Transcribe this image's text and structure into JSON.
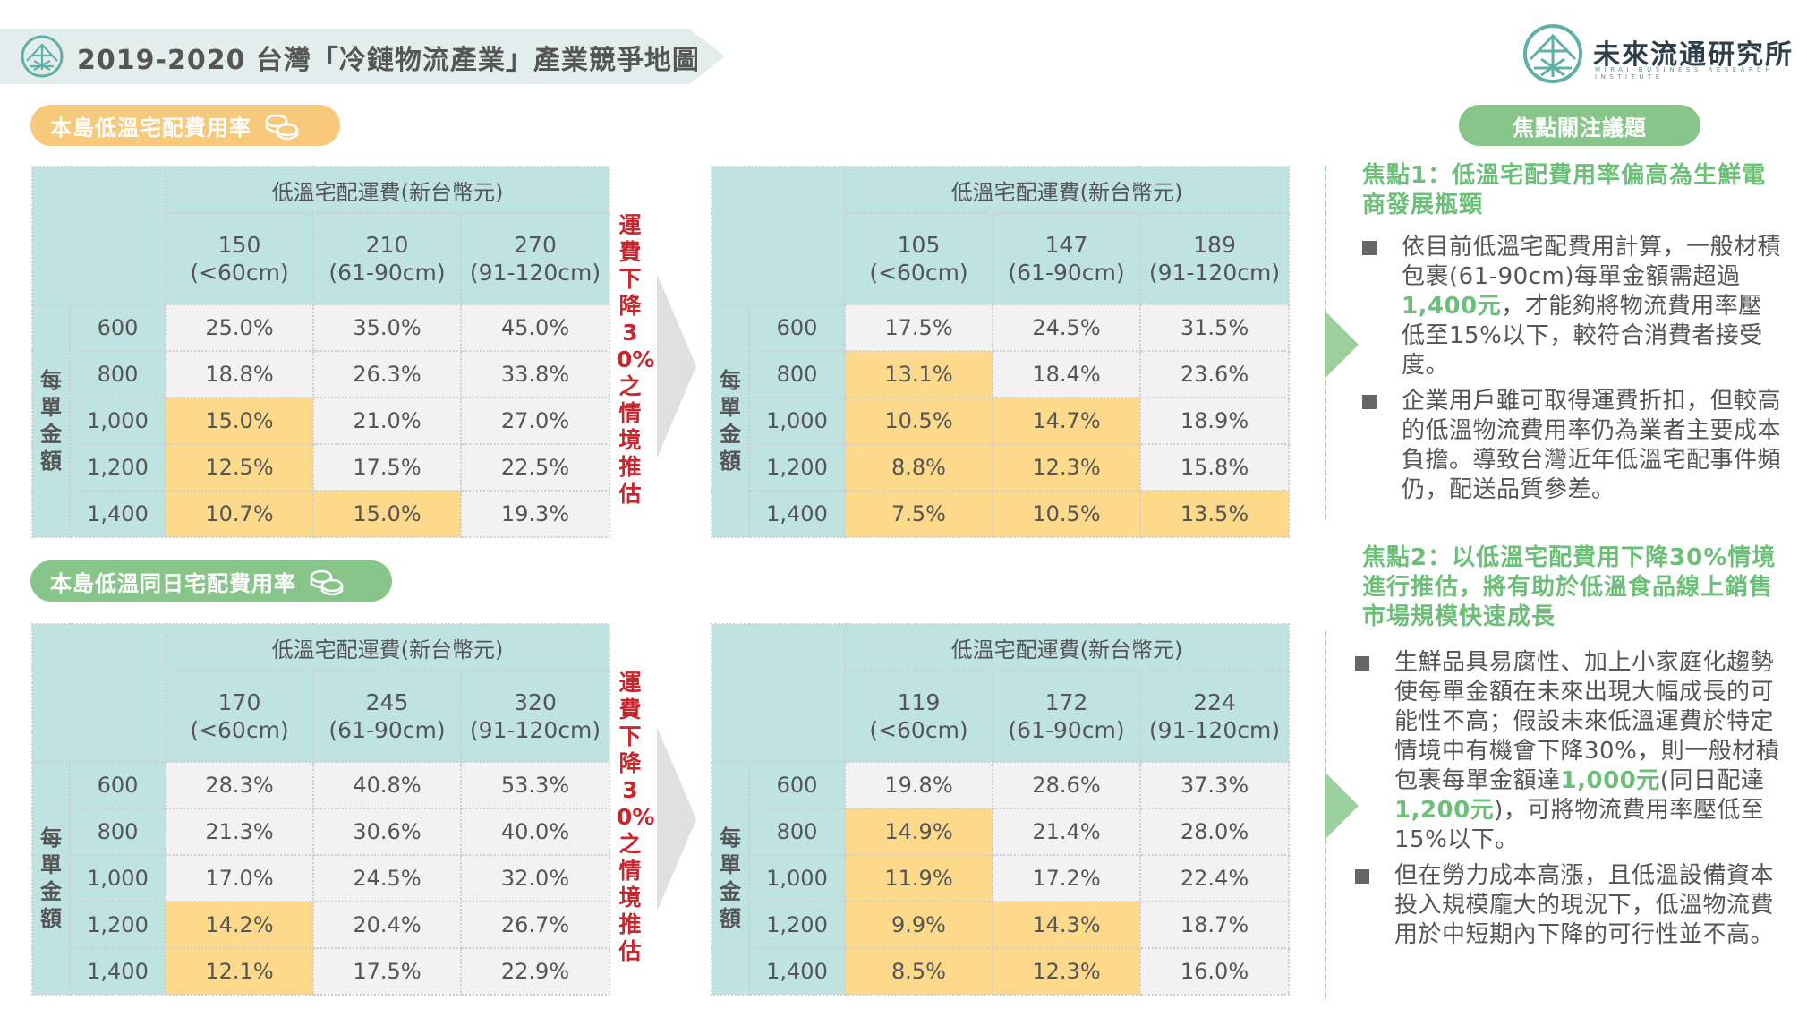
{
  "title": "2019-2020 台灣「冷鏈物流產業」產業競爭地圖",
  "logo": {
    "name": "未來流通研究所",
    "subtitle": "MIRAI BUSINESS RESEARCH INSTITUTE",
    "icon": "mirai-logo-icon"
  },
  "sections": {
    "island_label": "本島低溫宅配費用率",
    "same_day_label": "本島低溫同日宅配費用率",
    "focus_label": "焦點關注議題"
  },
  "colors": {
    "header_bg": "#bfe2e2",
    "highlight": "#fdd98c",
    "cell_bg": "#f2f2f2",
    "accent_green": "#6cbf77",
    "accent_orange": "#f7c97a",
    "red_text": "#c8262c"
  },
  "scenario_text": "運費下降30%之情境推估",
  "tables": {
    "t1": {
      "group_header": "低溫宅配運費(新台幣元)",
      "side_label": "每單金額",
      "cols": [
        {
          "price": "150",
          "size": "(<60cm)"
        },
        {
          "price": "210",
          "size": "(61-90cm)"
        },
        {
          "price": "270",
          "size": "(91-120cm)"
        }
      ],
      "rows": [
        {
          "label": "600",
          "cells": [
            {
              "v": "25.0%",
              "hl": false
            },
            {
              "v": "35.0%",
              "hl": false
            },
            {
              "v": "45.0%",
              "hl": false
            }
          ]
        },
        {
          "label": "800",
          "cells": [
            {
              "v": "18.8%",
              "hl": false
            },
            {
              "v": "26.3%",
              "hl": false
            },
            {
              "v": "33.8%",
              "hl": false
            }
          ]
        },
        {
          "label": "1,000",
          "cells": [
            {
              "v": "15.0%",
              "hl": true
            },
            {
              "v": "21.0%",
              "hl": false
            },
            {
              "v": "27.0%",
              "hl": false
            }
          ]
        },
        {
          "label": "1,200",
          "cells": [
            {
              "v": "12.5%",
              "hl": true
            },
            {
              "v": "17.5%",
              "hl": false
            },
            {
              "v": "22.5%",
              "hl": false
            }
          ]
        },
        {
          "label": "1,400",
          "cells": [
            {
              "v": "10.7%",
              "hl": true
            },
            {
              "v": "15.0%",
              "hl": true
            },
            {
              "v": "19.3%",
              "hl": false
            }
          ]
        }
      ]
    },
    "t2": {
      "group_header": "低溫宅配運費(新台幣元)",
      "side_label": "每單金額",
      "cols": [
        {
          "price": "105",
          "size": "(<60cm)"
        },
        {
          "price": "147",
          "size": "(61-90cm)"
        },
        {
          "price": "189",
          "size": "(91-120cm)"
        }
      ],
      "rows": [
        {
          "label": "600",
          "cells": [
            {
              "v": "17.5%",
              "hl": false
            },
            {
              "v": "24.5%",
              "hl": false
            },
            {
              "v": "31.5%",
              "hl": false
            }
          ]
        },
        {
          "label": "800",
          "cells": [
            {
              "v": "13.1%",
              "hl": true
            },
            {
              "v": "18.4%",
              "hl": false
            },
            {
              "v": "23.6%",
              "hl": false
            }
          ]
        },
        {
          "label": "1,000",
          "cells": [
            {
              "v": "10.5%",
              "hl": true
            },
            {
              "v": "14.7%",
              "hl": true
            },
            {
              "v": "18.9%",
              "hl": false
            }
          ]
        },
        {
          "label": "1,200",
          "cells": [
            {
              "v": "8.8%",
              "hl": true
            },
            {
              "v": "12.3%",
              "hl": true
            },
            {
              "v": "15.8%",
              "hl": false
            }
          ]
        },
        {
          "label": "1,400",
          "cells": [
            {
              "v": "7.5%",
              "hl": true
            },
            {
              "v": "10.5%",
              "hl": true
            },
            {
              "v": "13.5%",
              "hl": true
            }
          ]
        }
      ]
    },
    "t3": {
      "group_header": "低溫宅配運費(新台幣元)",
      "side_label": "每單金額",
      "cols": [
        {
          "price": "170",
          "size": "(<60cm)"
        },
        {
          "price": "245",
          "size": "(61-90cm)"
        },
        {
          "price": "320",
          "size": "(91-120cm)"
        }
      ],
      "rows": [
        {
          "label": "600",
          "cells": [
            {
              "v": "28.3%",
              "hl": false
            },
            {
              "v": "40.8%",
              "hl": false
            },
            {
              "v": "53.3%",
              "hl": false
            }
          ]
        },
        {
          "label": "800",
          "cells": [
            {
              "v": "21.3%",
              "hl": false
            },
            {
              "v": "30.6%",
              "hl": false
            },
            {
              "v": "40.0%",
              "hl": false
            }
          ]
        },
        {
          "label": "1,000",
          "cells": [
            {
              "v": "17.0%",
              "hl": false
            },
            {
              "v": "24.5%",
              "hl": false
            },
            {
              "v": "32.0%",
              "hl": false
            }
          ]
        },
        {
          "label": "1,200",
          "cells": [
            {
              "v": "14.2%",
              "hl": true
            },
            {
              "v": "20.4%",
              "hl": false
            },
            {
              "v": "26.7%",
              "hl": false
            }
          ]
        },
        {
          "label": "1,400",
          "cells": [
            {
              "v": "12.1%",
              "hl": true
            },
            {
              "v": "17.5%",
              "hl": false
            },
            {
              "v": "22.9%",
              "hl": false
            }
          ]
        }
      ]
    },
    "t4": {
      "group_header": "低溫宅配運費(新台幣元)",
      "side_label": "每單金額",
      "cols": [
        {
          "price": "119",
          "size": "(<60cm)"
        },
        {
          "price": "172",
          "size": "(61-90cm)"
        },
        {
          "price": "224",
          "size": "(91-120cm)"
        }
      ],
      "rows": [
        {
          "label": "600",
          "cells": [
            {
              "v": "19.8%",
              "hl": false
            },
            {
              "v": "28.6%",
              "hl": false
            },
            {
              "v": "37.3%",
              "hl": false
            }
          ]
        },
        {
          "label": "800",
          "cells": [
            {
              "v": "14.9%",
              "hl": true
            },
            {
              "v": "21.4%",
              "hl": false
            },
            {
              "v": "28.0%",
              "hl": false
            }
          ]
        },
        {
          "label": "1,000",
          "cells": [
            {
              "v": "11.9%",
              "hl": true
            },
            {
              "v": "17.2%",
              "hl": false
            },
            {
              "v": "22.4%",
              "hl": false
            }
          ]
        },
        {
          "label": "1,200",
          "cells": [
            {
              "v": "9.9%",
              "hl": true
            },
            {
              "v": "14.3%",
              "hl": true
            },
            {
              "v": "18.7%",
              "hl": false
            }
          ]
        },
        {
          "label": "1,400",
          "cells": [
            {
              "v": "8.5%",
              "hl": true
            },
            {
              "v": "12.3%",
              "hl": true
            },
            {
              "v": "16.0%",
              "hl": false
            }
          ]
        }
      ]
    }
  },
  "focus": {
    "f1": {
      "title": "焦點1：低溫宅配費用率偏高為生鮮電商發展瓶頸",
      "b1": {
        "pre": "依目前低溫宅配費用計算，一般材積包裹(61-90cm)每單金額需超過",
        "num": "1,400元",
        "post": "，才能夠將物流費用率壓低至15%以下，較符合消費者接受度。"
      },
      "b2": "企業用戶雖可取得運費折扣，但較高的低溫物流費用率仍為業者主要成本負擔。導致台灣近年低溫宅配事件頻仍，配送品質參差。"
    },
    "f2": {
      "title": "焦點2：以低溫宅配費用下降30%情境進行推估，將有助於低溫食品線上銷售市場規模快速成長",
      "b1": {
        "pre": "生鮮品具易腐性、加上小家庭化趨勢使每單金額在未來出現大幅成長的可能性不高；假設未來低溫運費於特定情境中有機會下降30%，則一般材積包裹每單金額達",
        "num1": "1,000元",
        "mid": "(同日配達",
        "num2": "1,200元",
        "post": ")，可將物流費用率壓低至15%以下。"
      },
      "b2": "但在勞力成本高漲，且低溫設備資本投入規模龐大的現況下，低溫物流費用於中短期內下降的可行性並不高。"
    }
  }
}
